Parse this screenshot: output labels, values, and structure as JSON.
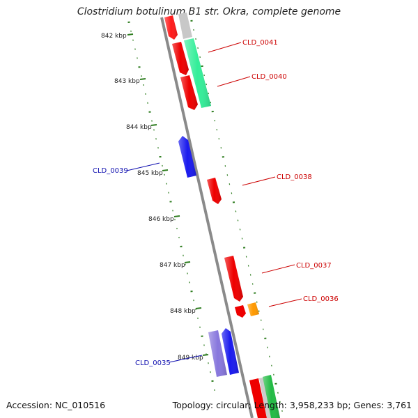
{
  "title": "Clostridium botulinum B1 str. Okra, complete genome",
  "footer": {
    "accession": "Accession: NC_010516",
    "summary": "Topology: circular; Length: 3,958,233 bp; Genes: 3,761"
  },
  "colors": {
    "backbone": "#8a8a8a",
    "tick": "#2e7d1f",
    "label_red": "#cc0000",
    "label_blue": "#1010b0",
    "label_black": "#222222"
  },
  "kbp_ticks": [
    {
      "label": "842 kbp"
    },
    {
      "label": "843 kbp"
    },
    {
      "label": "844 kbp"
    },
    {
      "label": "845 kbp"
    },
    {
      "label": "846 kbp"
    },
    {
      "label": "847 kbp"
    },
    {
      "label": "848 kbp"
    },
    {
      "label": "849 kbp"
    }
  ],
  "gene_labels": [
    {
      "id": "CLD_0041",
      "color": "#cc0000"
    },
    {
      "id": "CLD_0040",
      "color": "#cc0000"
    },
    {
      "id": "CLD_0039",
      "color": "#1010b0"
    },
    {
      "id": "CLD_0038",
      "color": "#cc0000"
    },
    {
      "id": "CLD_0037",
      "color": "#cc0000"
    },
    {
      "id": "CLD_0036",
      "color": "#cc0000"
    },
    {
      "id": "CLD_0035",
      "color": "#1010b0"
    }
  ],
  "features": [
    {
      "name": "gene-red-top-a",
      "color": "#ff1a1a"
    },
    {
      "name": "gene-gray-top",
      "color": "#c8c8c8"
    },
    {
      "name": "gene-red-0041",
      "color": "#ee0000"
    },
    {
      "name": "gene-green-0041-0040",
      "color": "#33ee99"
    },
    {
      "name": "gene-red-0040",
      "color": "#ee0000"
    },
    {
      "name": "gene-blue-0039",
      "color": "#1a1aee"
    },
    {
      "name": "gene-red-0038",
      "color": "#ee0000"
    },
    {
      "name": "gene-red-0037",
      "color": "#ee0000"
    },
    {
      "name": "gene-red-0036",
      "color": "#ee0000"
    },
    {
      "name": "gene-orange-0036",
      "color": "#ff9900"
    },
    {
      "name": "gene-purple-0035",
      "color": "#8877dd"
    },
    {
      "name": "gene-blue-0035",
      "color": "#1a1aee"
    },
    {
      "name": "gene-red-bottom",
      "color": "#ee0000"
    },
    {
      "name": "gene-gray-bottom",
      "color": "#cccccc"
    },
    {
      "name": "gene-green-bottom",
      "color": "#22bb44"
    }
  ]
}
